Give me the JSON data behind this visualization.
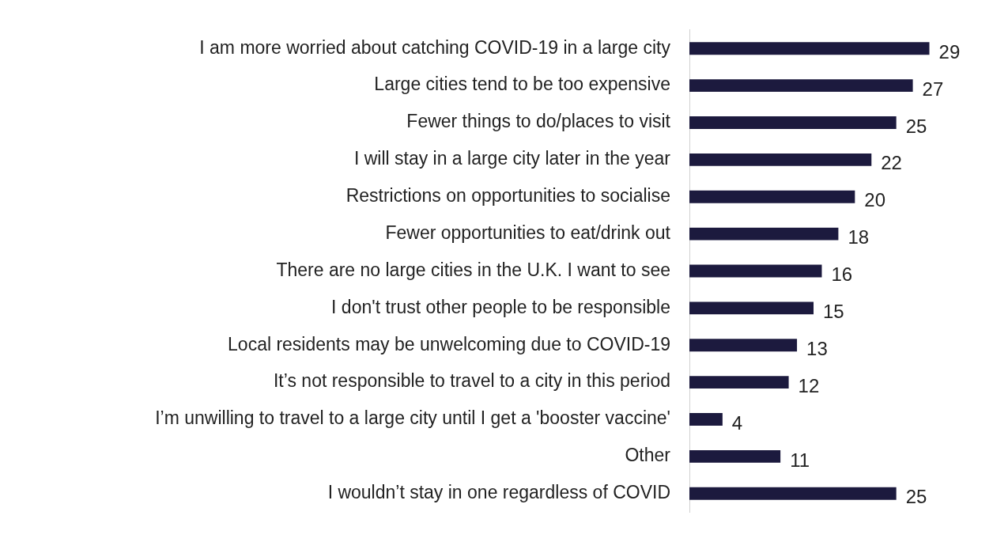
{
  "chart_data": {
    "type": "bar",
    "orientation": "horizontal",
    "data_labels": true,
    "legend": false,
    "tick_labels": "y",
    "categories": [
      "I am more worried about catching COVID-19 in a large city",
      "Large cities tend to be too expensive",
      "Fewer things to do/places to visit",
      "I will stay in a large city later in the year",
      "Restrictions on opportunities to socialise",
      "Fewer opportunities to eat/drink out",
      "There are no large cities in the U.K. I want to see",
      "I don't trust other people to be responsible",
      "Local residents may be unwelcoming due to COVID-19",
      "It’s not responsible to travel to a city in this period",
      "I’m unwilling to travel to a large city until I get a 'booster vaccine'",
      "Other",
      "I wouldn’t stay in one regardless of COVID"
    ],
    "values": [
      29,
      27,
      25,
      22,
      20,
      18,
      16,
      15,
      13,
      12,
      4,
      11,
      25
    ],
    "color": "#1c1a3e"
  }
}
